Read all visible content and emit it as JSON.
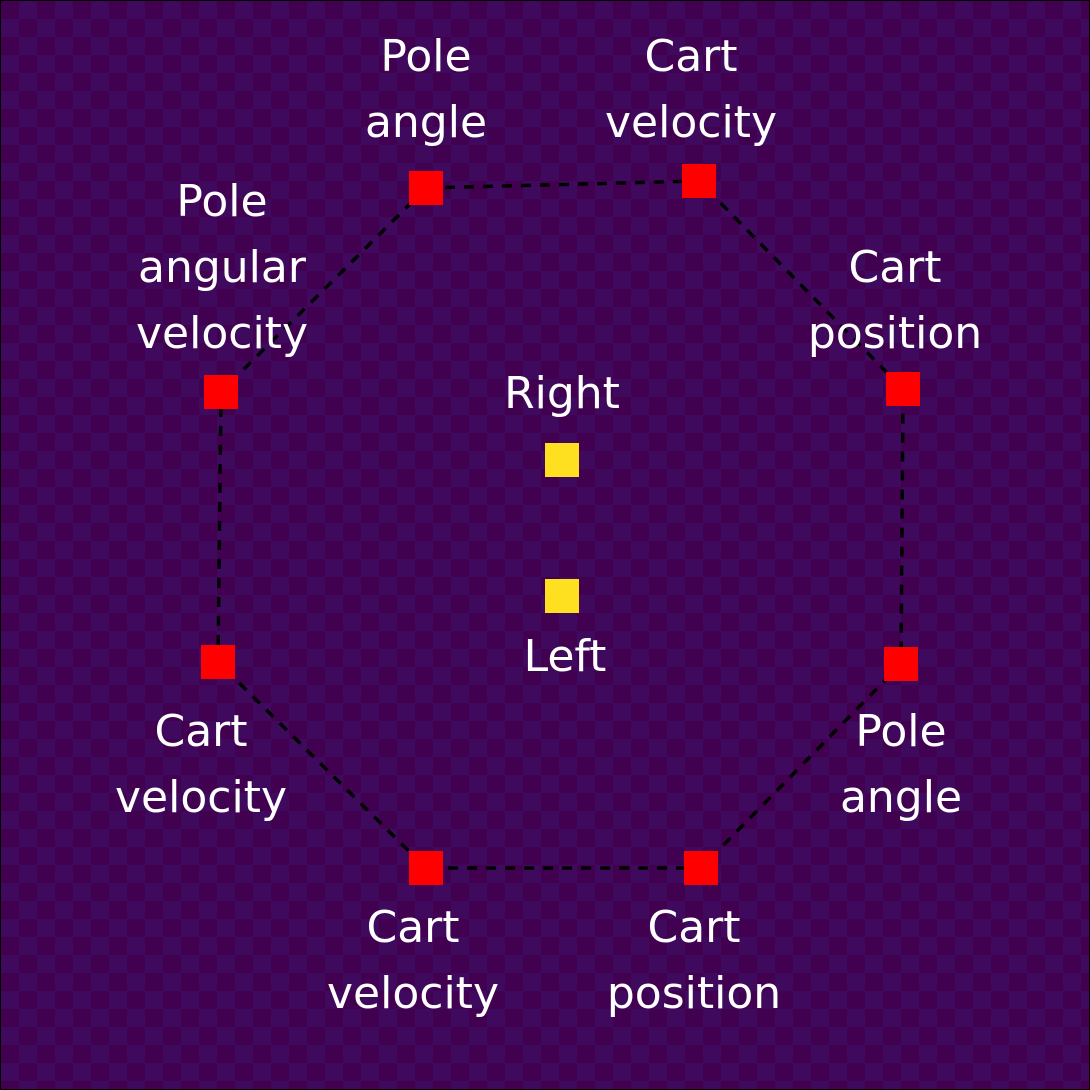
{
  "colors": {
    "background_dark": "#420050",
    "background_light": "#3f0a5e",
    "input_node": "#ff0000",
    "output_node": "#ffe020",
    "edge": "#000000",
    "label": "#ffffff"
  },
  "input_nodes": [
    {
      "lines": [
        "Pole",
        "angle"
      ]
    },
    {
      "lines": [
        "Cart",
        "velocity"
      ]
    },
    {
      "lines": [
        "Cart",
        "position"
      ]
    },
    {
      "lines": [
        "Pole",
        "angle"
      ]
    },
    {
      "lines": [
        "Cart",
        "position"
      ]
    },
    {
      "lines": [
        "Cart",
        "velocity"
      ]
    },
    {
      "lines": [
        "Cart",
        "velocity"
      ]
    },
    {
      "lines": [
        "Pole",
        "angular",
        "velocity"
      ]
    }
  ],
  "output_nodes": [
    {
      "label": "Right"
    },
    {
      "label": "Left"
    }
  ]
}
